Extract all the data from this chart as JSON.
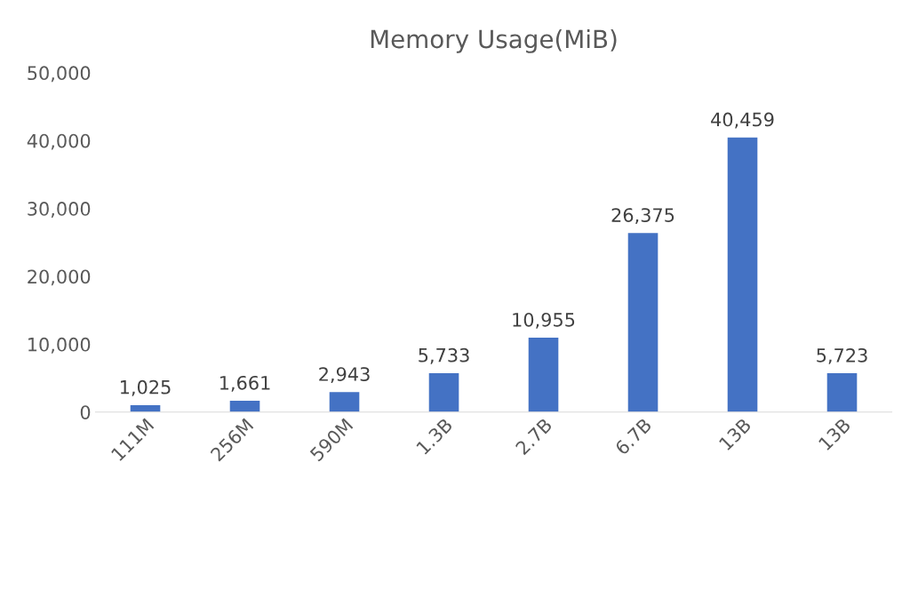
{
  "chart_data": {
    "type": "bar",
    "title": "Memory Usage(MiB)",
    "categories": [
      "111M",
      "256M",
      "590M",
      "1.3B",
      "2.7B",
      "6.7B",
      "13B",
      "13B"
    ],
    "values": [
      1025,
      1661,
      2943,
      5733,
      10955,
      26375,
      40459,
      5723
    ],
    "value_labels": [
      "1,025",
      "1,661",
      "2,943",
      "5,733",
      "10,955",
      "26,375",
      "40,459",
      "5,723"
    ],
    "color": "#4472c4",
    "ylim": [
      0,
      50000
    ],
    "yticks": [
      {
        "value": 0,
        "label": "0"
      },
      {
        "value": 10000,
        "label": "10,000"
      },
      {
        "value": 20000,
        "label": "20,000"
      },
      {
        "value": 30000,
        "label": "30,000"
      },
      {
        "value": 40000,
        "label": "40,000"
      },
      {
        "value": 50000,
        "label": "50,000"
      }
    ],
    "grid": false
  }
}
